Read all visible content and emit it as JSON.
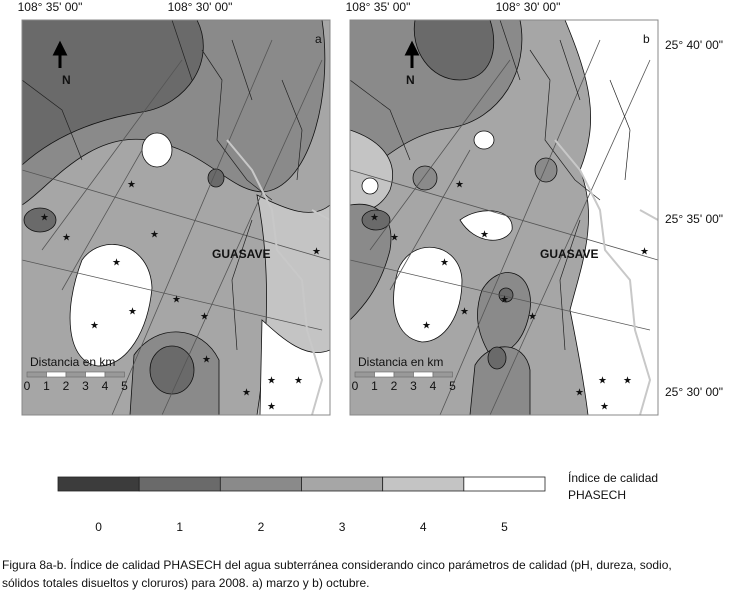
{
  "maps": [
    {
      "panel": "a",
      "x_labels": [
        "108° 35' 00\"",
        "108° 30' 00\""
      ],
      "town": "GUASAVE",
      "scale": {
        "title": "Distancia en km",
        "ticks": [
          0,
          1,
          2,
          3,
          4,
          5
        ]
      }
    },
    {
      "panel": "b",
      "x_labels": [
        "108° 35' 00\"",
        "108° 30' 00\""
      ],
      "town": "GUASAVE",
      "scale": {
        "title": "Distancia en km",
        "ticks": [
          0,
          1,
          2,
          3,
          4,
          5
        ]
      }
    }
  ],
  "y_labels": [
    "25° 40' 00\"",
    "25° 35' 00\"",
    "25° 30' 00\""
  ],
  "legend": {
    "title": [
      "Índice de calidad",
      "PHASECH"
    ],
    "classes": [
      {
        "label": 0,
        "color": "#3c3c3c"
      },
      {
        "label": 1,
        "color": "#6a6a6a"
      },
      {
        "label": 2,
        "color": "#8a8a8a"
      },
      {
        "label": 3,
        "color": "#a6a6a6"
      },
      {
        "label": 4,
        "color": "#c4c4c4"
      },
      {
        "label": 5,
        "color": "#ffffff"
      }
    ]
  },
  "caption": [
    "Figura 8a-b. Índice de calidad PHASECH del agua subterránea considerando cinco parámetros de calidad (pH, dureza, sodio,",
    "sólidos totales disueltos y cloruros) para 2008. a) marzo y b) octubre."
  ]
}
